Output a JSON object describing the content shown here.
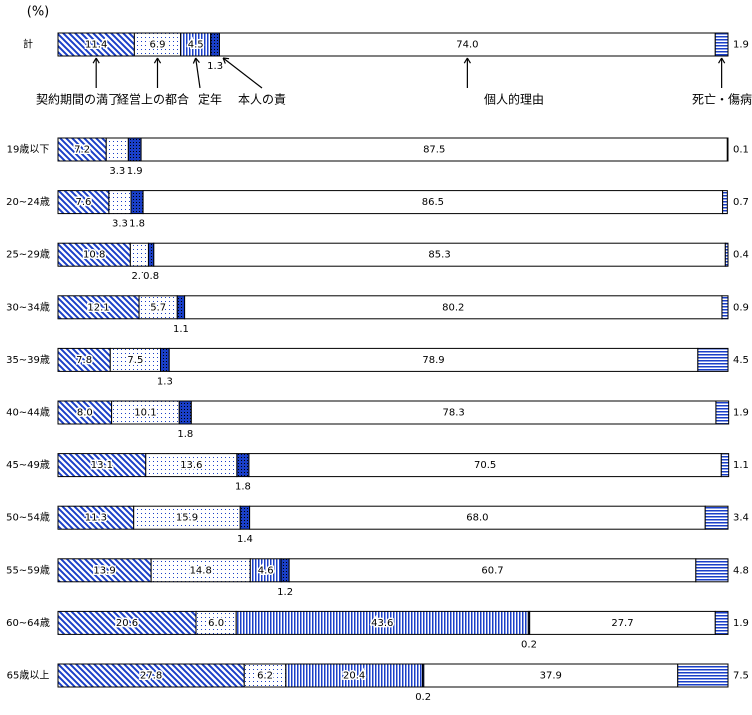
{
  "chart_data": {
    "type": "stacked-bar-100",
    "unit_label": "(%)",
    "categories": [
      "計",
      "19歳以下",
      "20~24歳",
      "25~29歳",
      "30~34歳",
      "35~39歳",
      "40~44歳",
      "45~49歳",
      "50~54歳",
      "55~59歳",
      "60~64歳",
      "65歳以上"
    ],
    "xlim": [
      0,
      100
    ],
    "series": [
      {
        "name": "契約期間の満了",
        "color": "#1a3fc8",
        "pattern": "diagonal",
        "values": [
          11.4,
          7.2,
          7.6,
          10.8,
          12.1,
          7.8,
          8.0,
          13.1,
          11.3,
          13.9,
          20.6,
          27.8
        ]
      },
      {
        "name": "経営上の都合",
        "color": "#1a3fc8",
        "pattern": "dots",
        "values": [
          6.9,
          3.3,
          3.3,
          2.7,
          5.7,
          7.5,
          10.1,
          13.6,
          15.9,
          14.8,
          6.0,
          6.2
        ]
      },
      {
        "name": "定年",
        "color": "#1a3fc8",
        "pattern": "vertical",
        "values": [
          4.5,
          null,
          null,
          null,
          null,
          null,
          null,
          null,
          null,
          4.6,
          43.6,
          20.4
        ]
      },
      {
        "name": "本人の責",
        "color": "#1a3fc8",
        "pattern": "solid",
        "values": [
          1.3,
          1.9,
          1.8,
          0.8,
          1.1,
          1.3,
          1.8,
          1.8,
          1.4,
          1.2,
          0.2,
          0.2
        ]
      },
      {
        "name": "個人的理由",
        "color": "#ffffff",
        "pattern": "none",
        "values": [
          74.0,
          87.5,
          86.5,
          85.3,
          80.2,
          78.9,
          78.3,
          70.5,
          68.0,
          60.7,
          27.7,
          37.9
        ]
      },
      {
        "name": "死亡・傷病",
        "color": "#1a3fc8",
        "pattern": "horizontal",
        "values": [
          1.9,
          0.1,
          0.7,
          0.4,
          0.9,
          4.5,
          1.9,
          1.1,
          3.4,
          4.8,
          1.9,
          7.5
        ]
      }
    ]
  }
}
